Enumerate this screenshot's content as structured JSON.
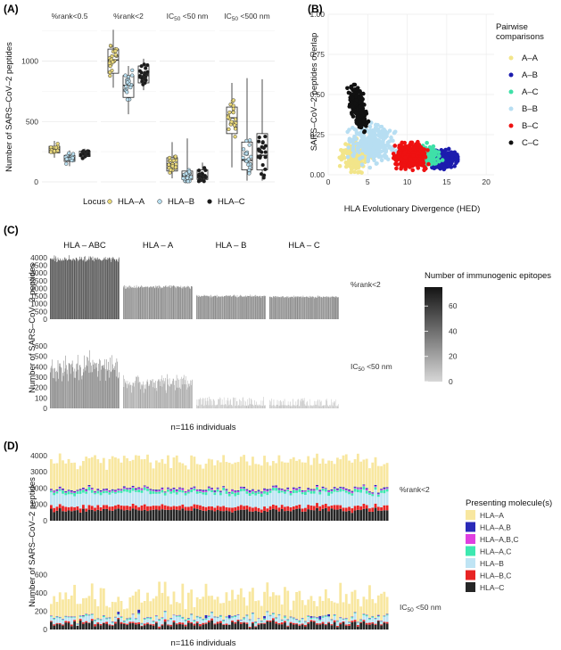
{
  "panels": {
    "A": "(A)",
    "B": "(B)",
    "C": "(C)",
    "D": "(D)"
  },
  "chart_data": [
    {
      "type": "box",
      "panel": "(A)",
      "ylabel": "Number of SARS–CoV–2 peptides",
      "ylim": [
        0,
        1300
      ],
      "yticks": [
        0,
        500,
        1000
      ],
      "facets": [
        "%rank<0.5",
        "%rank<2",
        "IC50 <50 nm",
        "IC50 <500 nm"
      ],
      "legend_title": "Locus",
      "legend": [
        "HLA–A",
        "HLA–B",
        "HLA–C"
      ],
      "series_colors": {
        "HLA–A": "#e9d87a",
        "HLA–B": "#b9dff0",
        "HLA–C": "#1a1a1a"
      },
      "boxes": [
        {
          "facet": "%rank<0.5",
          "locus": "HLA–A",
          "q1": 240,
          "median": 268,
          "q3": 295,
          "min": 200,
          "max": 340
        },
        {
          "facet": "%rank<0.5",
          "locus": "HLA–B",
          "q1": 170,
          "median": 195,
          "q3": 220,
          "min": 130,
          "max": 260
        },
        {
          "facet": "%rank<0.5",
          "locus": "HLA–C",
          "q1": 210,
          "median": 232,
          "q3": 255,
          "min": 190,
          "max": 275
        },
        {
          "facet": "%rank<2",
          "locus": "HLA–A",
          "q1": 900,
          "median": 1010,
          "q3": 1100,
          "min": 780,
          "max": 1260
        },
        {
          "facet": "%rank<2",
          "locus": "HLA–B",
          "q1": 700,
          "median": 800,
          "q3": 880,
          "min": 560,
          "max": 960
        },
        {
          "facet": "%rank<2",
          "locus": "HLA–C",
          "q1": 820,
          "median": 880,
          "q3": 960,
          "min": 760,
          "max": 1020
        },
        {
          "facet": "IC50 <50 nm",
          "locus": "HLA–A",
          "q1": 90,
          "median": 150,
          "q3": 200,
          "min": 30,
          "max": 330
        },
        {
          "facet": "IC50 <50 nm",
          "locus": "HLA–B",
          "q1": 20,
          "median": 50,
          "q3": 90,
          "min": 5,
          "max": 360
        },
        {
          "facet": "IC50 <50 nm",
          "locus": "HLA–C",
          "q1": 20,
          "median": 45,
          "q3": 100,
          "min": 5,
          "max": 160
        },
        {
          "facet": "IC50 <500 nm",
          "locus": "HLA–A",
          "q1": 400,
          "median": 530,
          "q3": 620,
          "min": 120,
          "max": 820
        },
        {
          "facet": "IC50 <500 nm",
          "locus": "HLA–B",
          "q1": 100,
          "median": 180,
          "q3": 330,
          "min": 10,
          "max": 860
        },
        {
          "facet": "IC50 <500 nm",
          "locus": "HLA–C",
          "q1": 100,
          "median": 220,
          "q3": 400,
          "min": 10,
          "max": 850
        }
      ]
    },
    {
      "type": "scatter",
      "panel": "(B)",
      "xlabel": "HLA Evolutionary Divergence (HED)",
      "ylabel": "SARS–CoV–2 peptides overlap",
      "xlim": [
        0,
        21
      ],
      "ylim": [
        0,
        1
      ],
      "xticks": [
        0,
        5,
        10,
        15,
        20
      ],
      "yticks": [
        "0.00",
        "0.25",
        "0.50",
        "0.75",
        "1.00"
      ],
      "legend_title": "Pairwise comparisons",
      "series": [
        {
          "name": "A–A",
          "color": "#f2e58a",
          "center": [
            3.5,
            0.12
          ],
          "spread": [
            2.2,
            0.12
          ],
          "n": 200
        },
        {
          "name": "A–B",
          "color": "#1c1cae",
          "center": [
            14.5,
            0.1
          ],
          "spread": [
            2.2,
            0.08
          ],
          "n": 200
        },
        {
          "name": "A–C",
          "color": "#3fe0a8",
          "center": [
            12.5,
            0.12
          ],
          "spread": [
            2.0,
            0.08
          ],
          "n": 120
        },
        {
          "name": "B–B",
          "color": "#b7def2",
          "center": [
            5.5,
            0.2
          ],
          "spread": [
            3.5,
            0.15
          ],
          "n": 300
        },
        {
          "name": "B–C",
          "color": "#ee1111",
          "center": [
            10.5,
            0.12
          ],
          "spread": [
            2.5,
            0.09
          ],
          "n": 400
        },
        {
          "name": "C–C",
          "color": "#111111",
          "center": [
            3.8,
            0.35
          ],
          "spread": [
            1.4,
            0.15
          ],
          "n": 200
        }
      ]
    },
    {
      "type": "bar",
      "panel": "(C)",
      "ylabel": "Number of SARS–CoV–2 peptides",
      "facets": [
        "HLA – ABC",
        "HLA – A",
        "HLA – B",
        "HLA – C"
      ],
      "rows": [
        {
          "label": "%rank<2",
          "yticks": [
            0,
            500,
            1000,
            1500,
            2000,
            2500,
            3000,
            3500,
            4000
          ],
          "ylim": [
            0,
            4400
          ],
          "means": {
            "HLA – ABC": 3900,
            "HLA – A": 2100,
            "HLA – B": 1500,
            "HLA – C": 1450
          }
        },
        {
          "label": "IC50 <50 nm",
          "yticks": [
            0,
            100,
            200,
            300,
            400,
            500,
            600
          ],
          "ylim": [
            0,
            720
          ],
          "means": {
            "HLA – ABC": 400,
            "HLA – A": 250,
            "HLA – B": 90,
            "HLA – C": 80
          }
        }
      ],
      "legend_title": "Number of immunogenic epitopes",
      "legend_ticks": [
        0,
        20,
        40,
        60
      ],
      "legend_range": [
        0,
        75
      ],
      "xlabel": "n=116 individuals",
      "n_individuals": 116
    },
    {
      "type": "stacked-bar",
      "panel": "(D)",
      "ylabel": "Number of SARS–CoV–2 peptides",
      "rows": [
        {
          "label": "%rank<2",
          "yticks": [
            0,
            1000,
            2000,
            3000,
            4000
          ],
          "ylim": [
            0,
            4600
          ]
        },
        {
          "label": "IC50 <50 nm",
          "yticks": [
            0,
            200,
            400,
            600
          ],
          "ylim": [
            0,
            720
          ]
        }
      ],
      "legend_title": "Presenting molecule(s)",
      "series": [
        {
          "name": "HLA–A",
          "color": "#f8e7a0"
        },
        {
          "name": "HLA–A,B",
          "color": "#2a2ab8"
        },
        {
          "name": "HLA–A,B,C",
          "color": "#e040e0"
        },
        {
          "name": "HLA–A,C",
          "color": "#3de8b0"
        },
        {
          "name": "HLA–B",
          "color": "#bfe4f4"
        },
        {
          "name": "HLA–B,C",
          "color": "#e82424"
        },
        {
          "name": "HLA–C",
          "color": "#262626"
        }
      ],
      "xlabel": "n=116 individuals",
      "n_individuals": 116
    }
  ]
}
